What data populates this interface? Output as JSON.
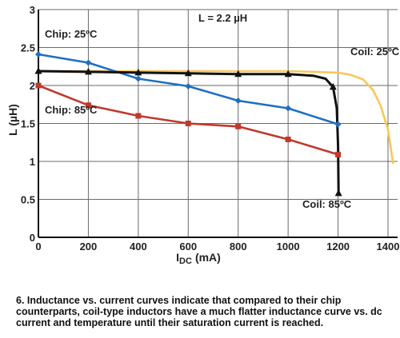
{
  "chart_data": {
    "type": "line",
    "title": "L = 2.2 µH",
    "xlabel_main": "I",
    "xlabel_sub": "DC",
    "xlabel_unit": "(mA)",
    "ylabel": "L (µH)",
    "xlim": [
      0,
      1400
    ],
    "ylim": [
      0,
      3
    ],
    "xticks": [
      "0",
      "200",
      "400",
      "600",
      "800",
      "1000",
      "1200",
      "1400"
    ],
    "yticks": [
      "0",
      "0.5",
      "1",
      "1.5",
      "2",
      "2.5",
      "3"
    ],
    "grid": true,
    "series": [
      {
        "name": "Chip: 25ºC",
        "color": "#1f6fc0",
        "marker": "diamond",
        "x": [
          0,
          200,
          400,
          600,
          800,
          1000,
          1200
        ],
        "y": [
          2.41,
          2.3,
          2.09,
          1.99,
          1.8,
          1.7,
          1.49
        ]
      },
      {
        "name": "Chip: 85ºC",
        "color": "#c0392b",
        "marker": "square",
        "x": [
          0,
          200,
          400,
          600,
          800,
          1000,
          1200
        ],
        "y": [
          2.0,
          1.74,
          1.6,
          1.5,
          1.46,
          1.29,
          1.09
        ]
      },
      {
        "name": "Coil: 25ºC",
        "color": "#f7c85a",
        "marker": "none",
        "x": [
          0,
          200,
          400,
          600,
          800,
          1000,
          1100,
          1200,
          1250,
          1300,
          1340,
          1370,
          1400,
          1420
        ],
        "y": [
          2.19,
          2.19,
          2.19,
          2.19,
          2.19,
          2.19,
          2.18,
          2.17,
          2.14,
          2.08,
          1.94,
          1.74,
          1.42,
          0.98
        ]
      },
      {
        "name": "Coil: 85ºC",
        "color": "#111111",
        "marker": "triangle",
        "x": [
          0,
          200,
          400,
          600,
          800,
          1000,
          1100,
          1150,
          1180,
          1195,
          1200,
          1202
        ],
        "y": [
          2.19,
          2.18,
          2.17,
          2.16,
          2.15,
          2.15,
          2.13,
          2.09,
          1.98,
          1.7,
          1.2,
          0.58
        ]
      }
    ],
    "marker_points": {
      "Coil: 85ºC": [
        [
          0,
          2.19
        ],
        [
          200,
          2.18
        ],
        [
          400,
          2.17
        ],
        [
          600,
          2.16
        ],
        [
          800,
          2.15
        ],
        [
          1000,
          2.15
        ],
        [
          1180,
          1.98
        ],
        [
          1202,
          0.58
        ]
      ]
    }
  },
  "caption": "6. Inductance vs. current curves indicate that compared to their chip counterparts, coil-type inductors have a much flatter inductance curve vs. dc current and temperature until their saturation current is reached."
}
